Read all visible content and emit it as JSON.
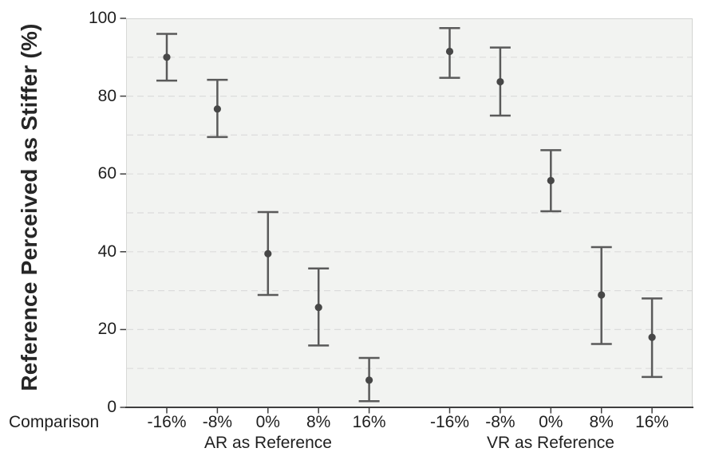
{
  "chart_data": {
    "type": "scatter",
    "title": "",
    "ylabel": "Reference Perceived as Stiffer (%)",
    "xlabel": "Comparison",
    "ylim": [
      0,
      100
    ],
    "yticks": [
      0,
      20,
      40,
      60,
      80,
      100
    ],
    "ytick_labels": [
      "0",
      "20",
      "40",
      "60",
      "80",
      "100"
    ],
    "grid": "dashed horizontal minor gridlines every 10 units",
    "gridline_step": 10,
    "legend": "none",
    "marker": "circle with vertical error bars (capped)",
    "groups": [
      {
        "label": "AR as Reference",
        "categories": [
          "-16%",
          "-8%",
          "0%",
          "8%",
          "16%"
        ],
        "means": [
          90.0,
          76.7,
          39.5,
          25.7,
          7.0
        ],
        "ci_low": [
          84.0,
          69.5,
          28.9,
          15.9,
          1.6
        ],
        "ci_high": [
          96.0,
          84.2,
          50.2,
          35.7,
          12.7
        ]
      },
      {
        "label": "VR as Reference",
        "categories": [
          "-16%",
          "-8%",
          "0%",
          "8%",
          "16%"
        ],
        "means": [
          91.5,
          83.7,
          58.3,
          28.9,
          18.0
        ],
        "ci_low": [
          84.7,
          75.0,
          50.4,
          16.3,
          7.8
        ],
        "ci_high": [
          97.5,
          92.5,
          66.1,
          41.2,
          28.0
        ]
      }
    ],
    "colors": {
      "point": "#474747",
      "error_bar": "#5a5a5a",
      "gridline": "#dcdcdc",
      "panel_background": "#f2f3f1",
      "panel_border": "#d3d4d2",
      "axis_line": "#3f3f3f",
      "tick_mark": "#3f3f3f",
      "text": "#1f1f1f"
    }
  }
}
